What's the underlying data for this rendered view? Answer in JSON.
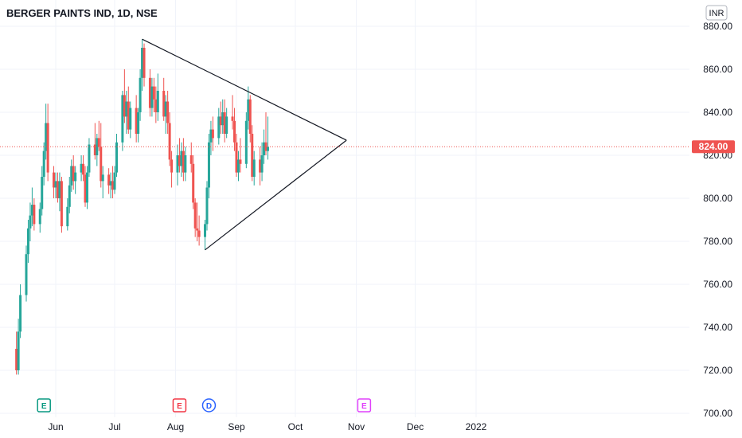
{
  "chart_data": {
    "type": "candlestick",
    "title": "BERGER PAINTS IND, 1D, NSE",
    "currency": "INR",
    "last_price": "824.00",
    "colors": {
      "up": "#26a69a",
      "down": "#ef5350",
      "trendline": "#131722",
      "grid": "#f0f3fa",
      "price_line": "#ef5350"
    },
    "ylim": [
      700,
      880
    ],
    "y_ticks": [
      "880.00",
      "860.00",
      "840.00",
      "820.00",
      "800.00",
      "780.00",
      "760.00",
      "740.00",
      "720.00",
      "700.00"
    ],
    "x_labels": [
      {
        "label": "Jun",
        "date": "2021-06-01"
      },
      {
        "label": "Jul",
        "date": "2021-07-01"
      },
      {
        "label": "Aug",
        "date": "2021-08-01"
      },
      {
        "label": "Sep",
        "date": "2021-09-01"
      },
      {
        "label": "Oct",
        "date": "2021-10-01"
      },
      {
        "label": "Nov",
        "date": "2021-11-01"
      },
      {
        "label": "Dec",
        "date": "2021-12-01"
      },
      {
        "label": "2022",
        "date": "2022-01-01"
      }
    ],
    "candles": [
      [
        "2021-05-12",
        730,
        738,
        718,
        720
      ],
      [
        "2021-05-13",
        720,
        744,
        718,
        738
      ],
      [
        "2021-05-14",
        738,
        760,
        735,
        755
      ],
      [
        "2021-05-17",
        755,
        778,
        752,
        774
      ],
      [
        "2021-05-18",
        774,
        790,
        770,
        786
      ],
      [
        "2021-05-19",
        786,
        798,
        780,
        792
      ],
      [
        "2021-05-20",
        792,
        805,
        787,
        797
      ],
      [
        "2021-05-21",
        797,
        800,
        785,
        788
      ],
      [
        "2021-05-24",
        788,
        798,
        784,
        795
      ],
      [
        "2021-05-25",
        795,
        815,
        792,
        810
      ],
      [
        "2021-05-26",
        810,
        826,
        806,
        822
      ],
      [
        "2021-05-27",
        822,
        844,
        818,
        835
      ],
      [
        "2021-05-28",
        835,
        844,
        808,
        812
      ],
      [
        "2021-05-31",
        812,
        815,
        800,
        805
      ],
      [
        "2021-06-01",
        805,
        812,
        800,
        808
      ],
      [
        "2021-06-02",
        808,
        812,
        798,
        800
      ],
      [
        "2021-06-03",
        800,
        812,
        794,
        808
      ],
      [
        "2021-06-04",
        808,
        810,
        784,
        787
      ],
      [
        "2021-06-07",
        787,
        800,
        785,
        796
      ],
      [
        "2021-06-08",
        796,
        810,
        793,
        806
      ],
      [
        "2021-06-09",
        806,
        818,
        803,
        815
      ],
      [
        "2021-06-10",
        815,
        820,
        804,
        808
      ],
      [
        "2021-06-11",
        808,
        815,
        802,
        812
      ],
      [
        "2021-06-14",
        812,
        820,
        808,
        816
      ],
      [
        "2021-06-15",
        816,
        820,
        808,
        811
      ],
      [
        "2021-06-16",
        811,
        815,
        796,
        798
      ],
      [
        "2021-06-17",
        798,
        815,
        795,
        812
      ],
      [
        "2021-06-18",
        812,
        828,
        810,
        825
      ],
      [
        "2021-06-21",
        825,
        835,
        818,
        820
      ],
      [
        "2021-06-22",
        820,
        830,
        815,
        828
      ],
      [
        "2021-06-23",
        828,
        836,
        822,
        824
      ],
      [
        "2021-06-24",
        824,
        835,
        805,
        808
      ],
      [
        "2021-06-25",
        808,
        815,
        800,
        811
      ],
      [
        "2021-06-28",
        811,
        814,
        802,
        806
      ],
      [
        "2021-06-29",
        806,
        812,
        800,
        808
      ],
      [
        "2021-06-30",
        808,
        815,
        800,
        804
      ],
      [
        "2021-07-01",
        804,
        815,
        802,
        812
      ],
      [
        "2021-07-02",
        812,
        830,
        810,
        826
      ],
      [
        "2021-07-05",
        826,
        850,
        822,
        848
      ],
      [
        "2021-07-06",
        848,
        860,
        835,
        838
      ],
      [
        "2021-07-07",
        838,
        850,
        830,
        845
      ],
      [
        "2021-07-08",
        845,
        852,
        830,
        832
      ],
      [
        "2021-07-09",
        832,
        845,
        828,
        842
      ],
      [
        "2021-07-12",
        842,
        848,
        826,
        830
      ],
      [
        "2021-07-13",
        830,
        842,
        826,
        840
      ],
      [
        "2021-07-14",
        840,
        860,
        836,
        856
      ],
      [
        "2021-07-15",
        856,
        874,
        850,
        870
      ],
      [
        "2021-07-16",
        870,
        872,
        852,
        856
      ],
      [
        "2021-07-19",
        856,
        860,
        838,
        842
      ],
      [
        "2021-07-20",
        842,
        856,
        838,
        852
      ],
      [
        "2021-07-21",
        852,
        856,
        840,
        846
      ],
      [
        "2021-07-22",
        846,
        852,
        835,
        840
      ],
      [
        "2021-07-23",
        840,
        858,
        836,
        850
      ],
      [
        "2021-07-26",
        850,
        856,
        836,
        838
      ],
      [
        "2021-07-27",
        838,
        848,
        830,
        845
      ],
      [
        "2021-07-28",
        845,
        850,
        830,
        835
      ],
      [
        "2021-07-29",
        835,
        840,
        815,
        818
      ],
      [
        "2021-07-30",
        818,
        822,
        805,
        812
      ],
      [
        "2021-08-02",
        812,
        825,
        806,
        820
      ],
      [
        "2021-08-03",
        820,
        828,
        812,
        815
      ],
      [
        "2021-08-04",
        815,
        826,
        810,
        822
      ],
      [
        "2021-08-05",
        822,
        828,
        808,
        812
      ],
      [
        "2021-08-06",
        812,
        824,
        808,
        820
      ],
      [
        "2021-08-09",
        820,
        826,
        812,
        816
      ],
      [
        "2021-08-10",
        816,
        820,
        795,
        798
      ],
      [
        "2021-08-11",
        798,
        800,
        782,
        786
      ],
      [
        "2021-08-12",
        786,
        798,
        780,
        785
      ],
      [
        "2021-08-13",
        785,
        792,
        778,
        782
      ],
      [
        "2021-08-16",
        782,
        790,
        776,
        788
      ],
      [
        "2021-08-17",
        788,
        808,
        785,
        805
      ],
      [
        "2021-08-18",
        805,
        830,
        800,
        826
      ],
      [
        "2021-08-19",
        826,
        836,
        820,
        832
      ],
      [
        "2021-08-20",
        832,
        838,
        822,
        828
      ],
      [
        "2021-08-23",
        828,
        842,
        825,
        838
      ],
      [
        "2021-08-24",
        838,
        845,
        830,
        834
      ],
      [
        "2021-08-25",
        834,
        846,
        830,
        840
      ],
      [
        "2021-08-26",
        840,
        846,
        826,
        830
      ],
      [
        "2021-08-27",
        830,
        842,
        828,
        838
      ],
      [
        "2021-08-30",
        838,
        848,
        832,
        836
      ],
      [
        "2021-08-31",
        836,
        842,
        822,
        826
      ],
      [
        "2021-09-01",
        826,
        830,
        810,
        812
      ],
      [
        "2021-09-02",
        812,
        822,
        808,
        818
      ],
      [
        "2021-09-03",
        818,
        828,
        812,
        816
      ],
      [
        "2021-09-06",
        816,
        840,
        814,
        836
      ],
      [
        "2021-09-07",
        836,
        852,
        832,
        846
      ],
      [
        "2021-09-08",
        846,
        848,
        826,
        830
      ],
      [
        "2021-09-09",
        830,
        834,
        808,
        810
      ],
      [
        "2021-09-10",
        810,
        822,
        806,
        818
      ],
      [
        "2021-09-13",
        818,
        824,
        806,
        812
      ],
      [
        "2021-09-14",
        812,
        826,
        808,
        820
      ],
      [
        "2021-09-15",
        820,
        832,
        816,
        826
      ],
      [
        "2021-09-16",
        826,
        840,
        820,
        822
      ],
      [
        "2021-09-17",
        822,
        838,
        818,
        824
      ]
    ],
    "trendlines": [
      {
        "from": [
          "2021-07-15",
          874
        ],
        "to": [
          "2021-10-27",
          827
        ]
      },
      {
        "from": [
          "2021-08-16",
          776
        ],
        "to": [
          "2021-10-27",
          827
        ]
      }
    ],
    "event_markers": [
      {
        "label": "E",
        "date": "2021-05-26",
        "color": "#089981",
        "style": "square"
      },
      {
        "label": "E",
        "date": "2021-08-03",
        "color": "#f23645",
        "style": "square"
      },
      {
        "label": "D",
        "date": "2021-08-18",
        "color": "#2962ff",
        "style": "circle"
      },
      {
        "label": "E",
        "date": "2021-11-05",
        "color": "#e040fb",
        "style": "square"
      }
    ]
  }
}
